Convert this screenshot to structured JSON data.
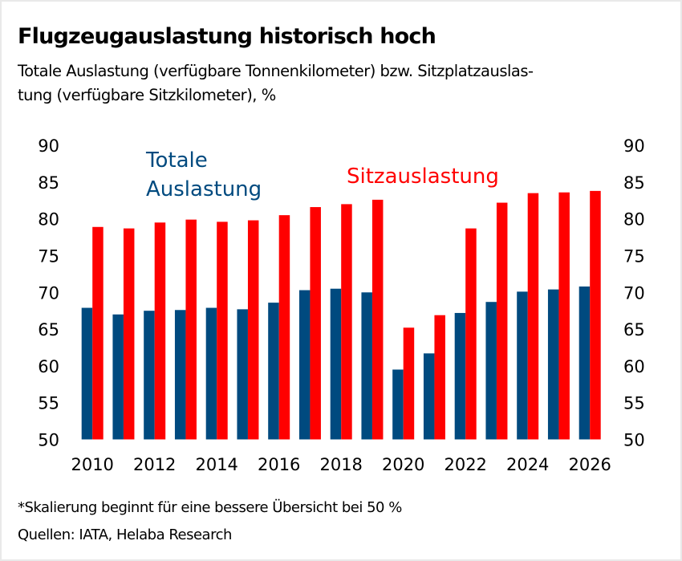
{
  "title": "Flugzeugauslastung historisch hoch",
  "subtitle": "Totale Auslastung (verfügbare Tonnenkilometer) bzw. Sitzplatzauslas-tung (verfügbare Sitzkilometer), %",
  "subtitle_lines": [
    "Totale Auslastung (verfügbare Tonnenkilometer) bzw. Sitzplatzauslas-",
    "tung (verfügbare Sitzkilometer), %"
  ],
  "footnote": "*Skalierung beginnt für eine bessere Übersicht bei 50 %",
  "source": "Quellen: IATA, Helaba Research",
  "colors": {
    "totale": "#004a7f",
    "sitz": "#ff0000"
  },
  "chart_data": {
    "type": "bar",
    "title": "Flugzeugauslastung historisch hoch",
    "xlabel": "",
    "ylabel": "%",
    "ylim": [
      50,
      90
    ],
    "yticks": [
      "90",
      "85",
      "80",
      "75",
      "70",
      "65",
      "60",
      "55",
      "50"
    ],
    "categories": [
      "2010",
      "2011",
      "2012",
      "2013",
      "2014",
      "2015",
      "2016",
      "2017",
      "2018",
      "2019",
      "2020",
      "2021",
      "2022",
      "2023",
      "2024",
      "2025",
      "2026"
    ],
    "xtick_labels": [
      "2010",
      "2012",
      "2014",
      "2016",
      "2018",
      "2020",
      "2022",
      "2024",
      "2026"
    ],
    "grid": false,
    "series": [
      {
        "name": "Totale Auslastung",
        "legend_lines": [
          "Totale",
          "Auslastung"
        ],
        "color": "#004a7f",
        "values": [
          67.9,
          67.0,
          67.5,
          67.6,
          67.9,
          67.7,
          68.6,
          70.3,
          70.5,
          70.0,
          59.5,
          61.7,
          67.2,
          68.7,
          70.1,
          70.4,
          70.8
        ]
      },
      {
        "name": "Sitzauslastung",
        "legend_lines": [
          "Sitzauslastung"
        ],
        "color": "#ff0000",
        "values": [
          78.9,
          78.7,
          79.5,
          79.9,
          79.6,
          79.8,
          80.5,
          81.6,
          82.0,
          82.6,
          65.2,
          66.9,
          78.7,
          82.2,
          83.5,
          83.6,
          83.8
        ]
      }
    ]
  }
}
